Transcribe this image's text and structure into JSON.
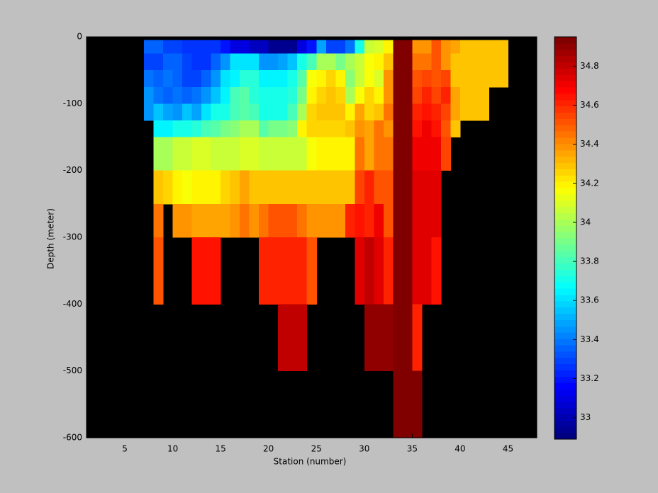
{
  "chart_data": {
    "type": "heatmap",
    "xlabel": "Station (number)",
    "ylabel": "Depth (meter)",
    "colormap": "jet",
    "background": "#000000",
    "x_edges": [
      1,
      2,
      3,
      4,
      5,
      6,
      7,
      8,
      9,
      10,
      11,
      12,
      13,
      14,
      15,
      16,
      17,
      18,
      19,
      20,
      21,
      22,
      23,
      24,
      25,
      26,
      27,
      28,
      29,
      30,
      31,
      32,
      33,
      34,
      35,
      36,
      37,
      38,
      39,
      40,
      41,
      42,
      43,
      44,
      45,
      46,
      47,
      48
    ],
    "y_edges": [
      0,
      -5,
      -25,
      -50,
      -75,
      -100,
      -125,
      -150,
      -200,
      -250,
      -300,
      -400,
      -500,
      -600
    ],
    "values": [
      [
        null,
        null,
        null,
        null,
        null,
        null,
        null,
        null,
        null,
        null,
        null,
        null,
        null,
        null,
        null,
        null,
        null,
        null,
        null,
        null,
        null,
        null,
        null,
        null,
        null,
        null,
        null,
        null,
        null,
        null,
        null,
        null,
        null,
        null,
        null,
        null,
        null,
        null,
        null,
        null,
        null,
        null,
        null,
        null,
        null,
        null,
        null
      ],
      [
        null,
        null,
        null,
        null,
        null,
        null,
        33.35,
        33.35,
        33.3,
        33.3,
        33.25,
        33.25,
        33.25,
        33.25,
        33.2,
        33.1,
        33.1,
        33.05,
        33.05,
        32.95,
        32.95,
        32.95,
        33.1,
        33.2,
        33.5,
        33.3,
        33.3,
        33.4,
        33.7,
        34.05,
        34.1,
        34.2,
        34.95,
        34.95,
        34.4,
        34.4,
        34.5,
        34.4,
        34.35,
        34.3,
        34.3,
        34.3,
        34.3,
        34.3,
        null,
        null,
        null
      ],
      [
        null,
        null,
        null,
        null,
        null,
        null,
        33.3,
        33.3,
        33.35,
        33.35,
        33.3,
        33.25,
        33.25,
        33.35,
        33.45,
        33.6,
        33.6,
        33.6,
        33.45,
        33.45,
        33.5,
        33.55,
        33.7,
        33.8,
        34.0,
        34.0,
        33.9,
        34.0,
        34.05,
        34.15,
        34.2,
        34.3,
        34.95,
        34.95,
        34.45,
        34.45,
        34.5,
        34.4,
        34.3,
        34.3,
        34.3,
        34.3,
        34.3,
        34.3,
        null,
        null,
        null
      ],
      [
        null,
        null,
        null,
        null,
        null,
        null,
        33.4,
        33.35,
        33.4,
        33.35,
        33.3,
        33.3,
        33.35,
        33.45,
        33.6,
        33.65,
        33.75,
        33.75,
        33.65,
        33.65,
        33.65,
        33.7,
        33.85,
        34.15,
        34.2,
        34.25,
        34.2,
        33.95,
        34.05,
        34.15,
        34.1,
        34.4,
        34.95,
        34.95,
        34.5,
        34.55,
        34.5,
        34.55,
        34.3,
        34.3,
        34.3,
        34.3,
        34.3,
        34.3,
        null,
        null,
        null
      ],
      [
        null,
        null,
        null,
        null,
        null,
        null,
        33.45,
        33.4,
        33.35,
        33.4,
        33.35,
        33.4,
        33.45,
        33.55,
        33.65,
        33.8,
        33.85,
        33.75,
        33.7,
        33.7,
        33.7,
        33.75,
        33.9,
        34.2,
        34.25,
        34.3,
        34.25,
        34.0,
        34.15,
        34.25,
        34.2,
        34.4,
        34.95,
        34.95,
        34.55,
        34.6,
        34.55,
        34.6,
        34.35,
        34.3,
        34.3,
        34.3,
        null,
        null,
        null,
        null,
        null
      ],
      [
        null,
        null,
        null,
        null,
        null,
        null,
        33.45,
        33.55,
        33.5,
        33.45,
        33.55,
        33.5,
        33.6,
        33.7,
        33.7,
        33.8,
        33.85,
        33.8,
        33.7,
        33.7,
        33.7,
        33.8,
        34.0,
        34.25,
        34.3,
        34.3,
        34.3,
        34.2,
        34.35,
        34.25,
        34.3,
        34.45,
        34.95,
        34.95,
        34.6,
        34.65,
        34.6,
        34.55,
        34.35,
        34.3,
        34.3,
        34.3,
        null,
        null,
        null,
        null,
        null
      ],
      [
        null,
        null,
        null,
        null,
        null,
        null,
        null,
        33.65,
        33.65,
        33.7,
        33.7,
        33.75,
        33.8,
        33.85,
        33.9,
        33.95,
        34.0,
        34.0,
        33.85,
        33.9,
        33.9,
        33.95,
        34.2,
        34.25,
        34.25,
        34.25,
        34.25,
        34.3,
        34.4,
        34.35,
        34.45,
        34.4,
        34.95,
        34.95,
        34.65,
        34.7,
        34.65,
        34.5,
        34.3,
        null,
        null,
        null,
        null,
        null,
        null,
        null,
        null
      ],
      [
        null,
        null,
        null,
        null,
        null,
        null,
        null,
        34.0,
        34.0,
        34.05,
        34.05,
        34.1,
        34.1,
        34.05,
        34.05,
        34.05,
        34.1,
        34.1,
        34.05,
        34.05,
        34.05,
        34.05,
        34.05,
        34.15,
        34.2,
        34.2,
        34.2,
        34.2,
        34.45,
        34.35,
        34.45,
        34.45,
        34.95,
        34.95,
        34.7,
        34.7,
        34.7,
        34.55,
        null,
        null,
        null,
        null,
        null,
        null,
        null,
        null,
        null
      ],
      [
        null,
        null,
        null,
        null,
        null,
        null,
        null,
        34.3,
        34.25,
        34.2,
        34.15,
        34.2,
        34.2,
        34.2,
        34.25,
        34.3,
        34.35,
        34.3,
        34.3,
        34.3,
        34.3,
        34.3,
        34.3,
        34.3,
        34.3,
        34.3,
        34.3,
        34.3,
        34.55,
        34.6,
        34.5,
        34.5,
        34.95,
        34.95,
        34.75,
        34.75,
        34.75,
        null,
        null,
        null,
        null,
        null,
        null,
        null,
        null,
        null,
        null
      ],
      [
        null,
        null,
        null,
        null,
        null,
        null,
        null,
        34.45,
        null,
        34.4,
        34.4,
        34.35,
        34.35,
        34.35,
        34.35,
        34.4,
        34.45,
        34.4,
        34.45,
        34.5,
        34.5,
        34.5,
        34.45,
        34.4,
        34.4,
        34.4,
        34.4,
        34.6,
        34.65,
        34.6,
        34.7,
        34.5,
        34.95,
        34.95,
        34.75,
        34.75,
        34.75,
        null,
        null,
        null,
        null,
        null,
        null,
        null,
        null,
        null,
        null
      ],
      [
        null,
        null,
        null,
        null,
        null,
        null,
        null,
        34.5,
        null,
        null,
        null,
        34.65,
        34.65,
        34.65,
        null,
        null,
        null,
        null,
        34.6,
        34.6,
        34.6,
        34.6,
        34.6,
        34.5,
        null,
        null,
        null,
        null,
        34.75,
        34.8,
        34.75,
        34.6,
        34.95,
        34.95,
        34.75,
        34.75,
        34.65,
        null,
        null,
        null,
        null,
        null,
        null,
        null,
        null,
        null,
        null
      ],
      [
        null,
        null,
        null,
        null,
        null,
        null,
        null,
        null,
        null,
        null,
        null,
        null,
        null,
        null,
        null,
        null,
        null,
        null,
        null,
        null,
        34.8,
        34.8,
        34.8,
        null,
        null,
        null,
        null,
        null,
        null,
        34.9,
        34.9,
        34.9,
        34.95,
        34.95,
        34.6,
        null,
        null,
        null,
        null,
        null,
        null,
        null,
        null,
        null,
        null,
        null,
        null
      ],
      [
        null,
        null,
        null,
        null,
        null,
        null,
        null,
        null,
        null,
        null,
        null,
        null,
        null,
        null,
        null,
        null,
        null,
        null,
        null,
        null,
        null,
        null,
        null,
        null,
        null,
        null,
        null,
        null,
        null,
        null,
        null,
        null,
        34.95,
        34.95,
        34.95,
        null,
        null,
        null,
        null,
        null,
        null,
        null,
        null,
        null,
        null,
        null,
        null
      ]
    ],
    "xlim": [
      1,
      48
    ],
    "ylim": [
      -600,
      0
    ],
    "xticks": [
      5,
      10,
      15,
      20,
      25,
      30,
      35,
      40,
      45
    ],
    "yticks": [
      -600,
      -500,
      -400,
      -300,
      -200,
      -100,
      0
    ],
    "clim": [
      32.89,
      34.95
    ],
    "cticks": [
      33,
      33.2,
      33.4,
      33.6,
      33.8,
      34,
      34.2,
      34.4,
      34.6,
      34.8
    ]
  }
}
